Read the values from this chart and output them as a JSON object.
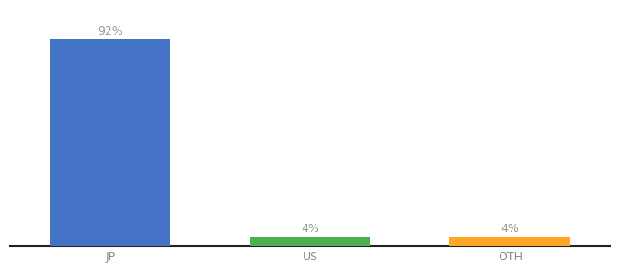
{
  "categories": [
    "JP",
    "US",
    "OTH"
  ],
  "values": [
    92,
    4,
    4
  ],
  "bar_colors": [
    "#4472c4",
    "#4caf50",
    "#ffa726"
  ],
  "label_color": "#999999",
  "ylim": [
    0,
    105
  ],
  "bar_width": 0.6,
  "background_color": "#ffffff",
  "label_fontsize": 9,
  "tick_fontsize": 9,
  "tick_color": "#888888",
  "spine_color": "#222222"
}
